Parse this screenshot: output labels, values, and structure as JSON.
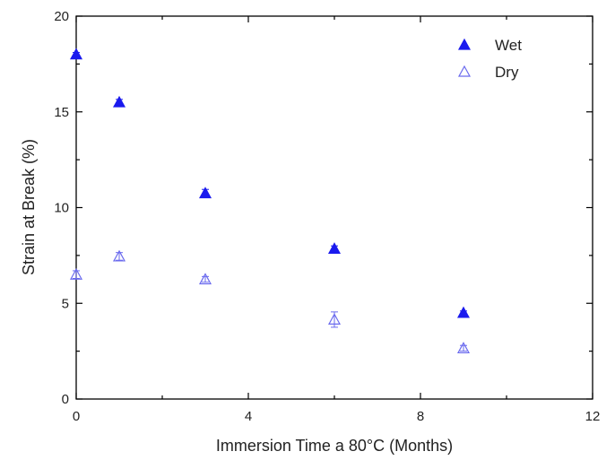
{
  "chart_data": {
    "type": "scatter",
    "xlabel": "Immersion Time a 80°C (Months)",
    "ylabel": "Strain at Break (%)",
    "xlim": [
      0,
      12
    ],
    "ylim": [
      0,
      20
    ],
    "xticks": [
      0,
      4,
      8,
      12
    ],
    "yticks": [
      0,
      5,
      10,
      15,
      20
    ],
    "grid": false,
    "legend_position": "top-right",
    "series": [
      {
        "name": "Wet",
        "marker": "filled-triangle",
        "color": "#1a1aee",
        "points": [
          {
            "x": 0,
            "y": 18.0,
            "err": 0.1
          },
          {
            "x": 1,
            "y": 15.5,
            "err": 0.15
          },
          {
            "x": 3,
            "y": 10.75,
            "err": 0.2
          },
          {
            "x": 6,
            "y": 7.85,
            "err": 0.15
          },
          {
            "x": 9,
            "y": 4.5,
            "err": 0.1
          }
        ]
      },
      {
        "name": "Dry",
        "marker": "open-triangle",
        "color": "#6a6aee",
        "points": [
          {
            "x": 0,
            "y": 6.5,
            "err": 0.2
          },
          {
            "x": 1,
            "y": 7.45,
            "err": 0.2
          },
          {
            "x": 3,
            "y": 6.25,
            "err": 0.15
          },
          {
            "x": 6,
            "y": 4.15,
            "err": 0.4
          },
          {
            "x": 9,
            "y": 2.65,
            "err": 0.15
          }
        ]
      }
    ]
  }
}
